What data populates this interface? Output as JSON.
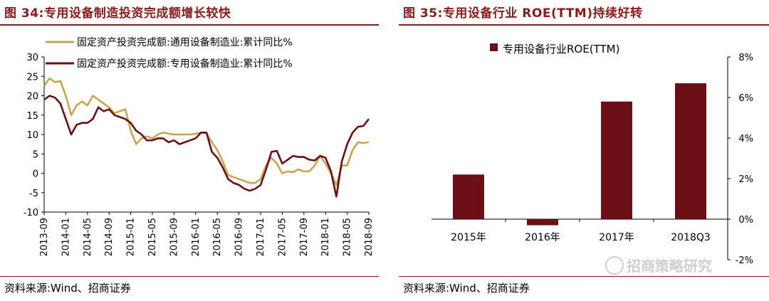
{
  "left": {
    "title": "图 34:专用设备制造投资完成额增长较快",
    "source": "资料来源:Wind、招商证券"
  },
  "right": {
    "title": "图 35:专用设备行业 ROE(TTM)持续好转",
    "source": "资料来源:Wind、招商证券"
  },
  "watermark": "招商策略研究",
  "colors": {
    "gold": "#c8a650",
    "maroon": "#6b0f16",
    "accent": "#8b1a1a"
  },
  "chart_data": [
    {
      "type": "line",
      "title": "",
      "ylim": [
        -10,
        30
      ],
      "yticks": [
        -10,
        -5,
        0,
        5,
        10,
        15,
        20,
        25,
        30
      ],
      "xtick_labels": [
        "2013-09",
        "2014-01",
        "2014-05",
        "2014-09",
        "2015-01",
        "2015-05",
        "2015-09",
        "2016-01",
        "2016-05",
        "2016-09",
        "2017-01",
        "2017-05",
        "2017-09",
        "2018-01",
        "2018-05",
        "2018-09"
      ],
      "legend_position": "top-left",
      "grid": false,
      "series": [
        {
          "name": "固定资产投资完成额:通用设备制造业:累计同比%",
          "color": "#c8a650",
          "values": [
            22.5,
            24.5,
            23.5,
            23.8,
            20,
            15,
            17.5,
            18.5,
            17.5,
            20,
            19,
            18,
            17,
            15.5,
            16,
            16.5,
            11,
            7.5,
            9,
            9.5,
            9,
            10,
            10.5,
            10.2,
            10,
            10,
            10,
            10,
            10.2,
            10.5,
            10.3,
            8,
            6,
            3,
            -0.5,
            -1,
            -1.5,
            -2,
            -2.5,
            -2.5,
            -1.5,
            2,
            4,
            2.5,
            0,
            0.5,
            0.3,
            1,
            0.5,
            0.5,
            2,
            4.5,
            2.5,
            0,
            -3,
            2,
            2,
            6,
            8,
            7.8,
            8
          ]
        },
        {
          "name": "固定资产投资完成额:专用设备制造业:累计同比%",
          "color": "#6b0f16",
          "values": [
            19,
            20,
            19.5,
            18,
            14,
            10,
            12.5,
            13,
            13,
            14,
            17,
            16,
            16.5,
            15,
            14.5,
            14,
            13,
            11,
            10,
            8.5,
            8.5,
            9,
            9,
            8,
            8.5,
            7.5,
            8,
            8.5,
            9,
            10.5,
            10.5,
            5.5,
            4,
            1.5,
            -1.5,
            -2.5,
            -3,
            -4,
            -4.5,
            -4,
            -3,
            1,
            5.5,
            5.8,
            2.5,
            3.5,
            4.5,
            4.2,
            4.2,
            3.5,
            3.3,
            4.5,
            4,
            0.5,
            -6,
            3,
            7.5,
            10.5,
            12,
            12.2,
            14
          ]
        }
      ]
    },
    {
      "type": "bar",
      "title": "",
      "categories": [
        "2015年",
        "2016年",
        "2017年",
        "2018Q3"
      ],
      "series": [
        {
          "name": "专用设备行业ROE(TTM)",
          "color": "#6b0f16",
          "values": [
            2.2,
            -0.3,
            5.8,
            6.7
          ]
        }
      ],
      "ylim": [
        -2,
        8
      ],
      "yticks": [
        -2,
        0,
        2,
        4,
        6,
        8
      ],
      "ytick_labels": [
        "-2%",
        "0%",
        "2%",
        "4%",
        "6%",
        "8%"
      ],
      "axis_side": "right",
      "legend_position": "top",
      "grid": false
    }
  ]
}
